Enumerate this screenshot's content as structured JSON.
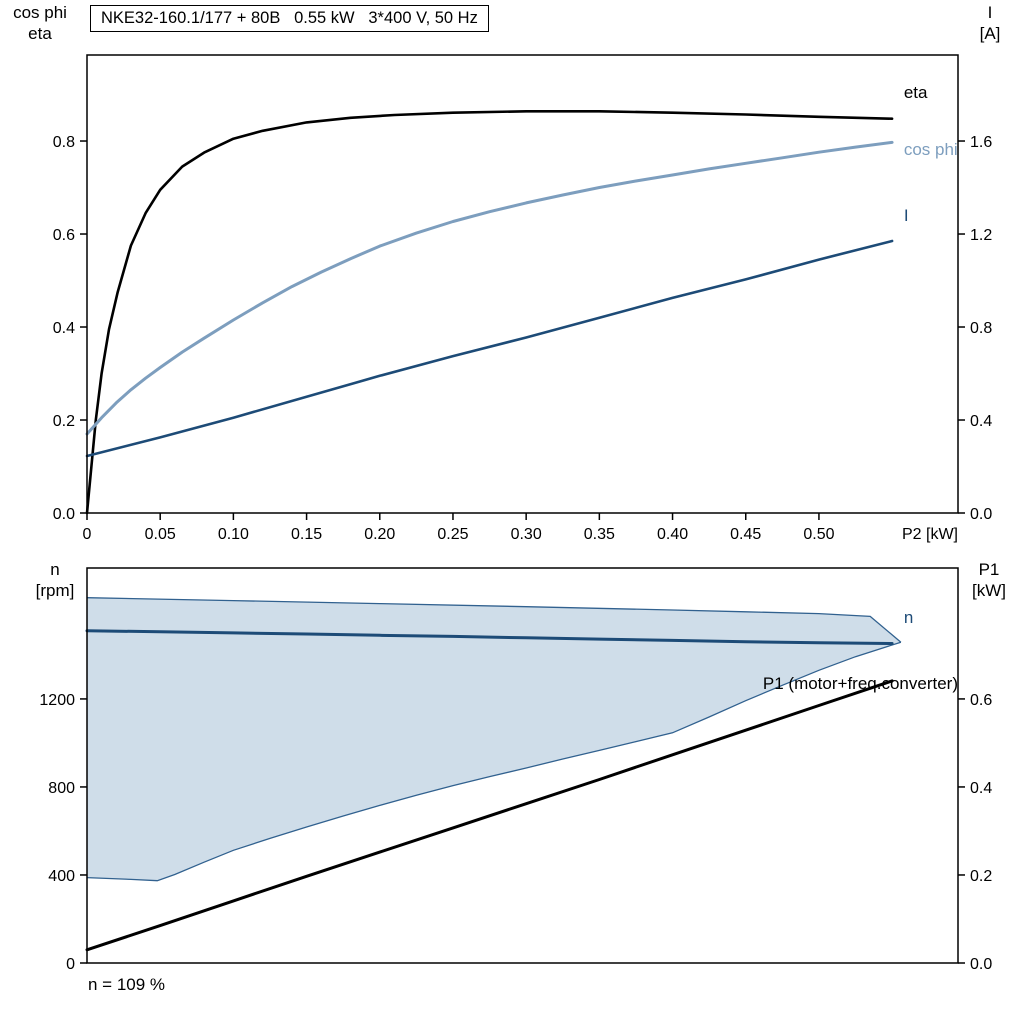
{
  "page": {
    "colors": {
      "black": "#000000",
      "light_blue": "#7d9ebe",
      "dark_blue": "#1d4b77",
      "area_fill": "#cfdde9",
      "area_edge": "#31618f"
    }
  },
  "chart_data": [
    {
      "id": "top",
      "type": "line",
      "title": "NKE32-160.1/177 + 80B   0.55 kW   3*400 V, 50 Hz",
      "xlabel": "P2 [kW]",
      "ylabel_left": [
        "cos phi",
        "eta"
      ],
      "ylabel_right": [
        "I",
        "[A]"
      ],
      "xlim": [
        0,
        0.595
      ],
      "ylim_left": [
        0,
        0.985
      ],
      "ylim_right": [
        0,
        1.97
      ],
      "grid": false,
      "legend_position": "inline-right",
      "xticks": [
        {
          "v": 0,
          "label": "0"
        },
        {
          "v": 0.05,
          "label": "0.05"
        },
        {
          "v": 0.1,
          "label": "0.10"
        },
        {
          "v": 0.15,
          "label": "0.15"
        },
        {
          "v": 0.2,
          "label": "0.20"
        },
        {
          "v": 0.25,
          "label": "0.25"
        },
        {
          "v": 0.3,
          "label": "0.30"
        },
        {
          "v": 0.35,
          "label": "0.35"
        },
        {
          "v": 0.4,
          "label": "0.40"
        },
        {
          "v": 0.45,
          "label": "0.45"
        },
        {
          "v": 0.5,
          "label": "0.50"
        }
      ],
      "yticks_left": [
        {
          "v": 0,
          "label": "0.0"
        },
        {
          "v": 0.2,
          "label": "0.2"
        },
        {
          "v": 0.4,
          "label": "0.4"
        },
        {
          "v": 0.6,
          "label": "0.6"
        },
        {
          "v": 0.8,
          "label": "0.8"
        }
      ],
      "yticks_right": [
        {
          "v": 0,
          "label": "0.0"
        },
        {
          "v": 0.4,
          "label": "0.4"
        },
        {
          "v": 0.8,
          "label": "0.8"
        },
        {
          "v": 1.2,
          "label": "1.2"
        },
        {
          "v": 1.6,
          "label": "1.6"
        }
      ],
      "series": [
        {
          "name": "eta",
          "axis": "left",
          "color": "black",
          "width": 2.6,
          "points": [
            [
              0,
              0
            ],
            [
              0.003,
              0.1
            ],
            [
              0.006,
              0.2
            ],
            [
              0.01,
              0.3
            ],
            [
              0.015,
              0.395
            ],
            [
              0.021,
              0.475
            ],
            [
              0.03,
              0.575
            ],
            [
              0.04,
              0.645
            ],
            [
              0.05,
              0.695
            ],
            [
              0.065,
              0.745
            ],
            [
              0.08,
              0.775
            ],
            [
              0.1,
              0.805
            ],
            [
              0.12,
              0.822
            ],
            [
              0.15,
              0.84
            ],
            [
              0.18,
              0.85
            ],
            [
              0.21,
              0.856
            ],
            [
              0.25,
              0.861
            ],
            [
              0.3,
              0.864
            ],
            [
              0.35,
              0.864
            ],
            [
              0.4,
              0.861
            ],
            [
              0.45,
              0.857
            ],
            [
              0.5,
              0.852
            ],
            [
              0.55,
              0.848
            ]
          ]
        },
        {
          "name": "cos phi",
          "axis": "left",
          "color": "light_blue",
          "width": 3,
          "points": [
            [
              0,
              0.17
            ],
            [
              0.01,
              0.205
            ],
            [
              0.02,
              0.237
            ],
            [
              0.03,
              0.265
            ],
            [
              0.04,
              0.29
            ],
            [
              0.05,
              0.313
            ],
            [
              0.065,
              0.346
            ],
            [
              0.08,
              0.376
            ],
            [
              0.1,
              0.415
            ],
            [
              0.12,
              0.452
            ],
            [
              0.14,
              0.487
            ],
            [
              0.16,
              0.518
            ],
            [
              0.18,
              0.547
            ],
            [
              0.2,
              0.574
            ],
            [
              0.225,
              0.602
            ],
            [
              0.25,
              0.627
            ],
            [
              0.275,
              0.648
            ],
            [
              0.3,
              0.667
            ],
            [
              0.325,
              0.684
            ],
            [
              0.35,
              0.7
            ],
            [
              0.375,
              0.714
            ],
            [
              0.4,
              0.727
            ],
            [
              0.425,
              0.74
            ],
            [
              0.45,
              0.752
            ],
            [
              0.475,
              0.764
            ],
            [
              0.5,
              0.776
            ],
            [
              0.525,
              0.787
            ],
            [
              0.55,
              0.797
            ]
          ]
        },
        {
          "name": "I",
          "axis": "right",
          "color": "dark_blue",
          "width": 2.6,
          "points": [
            [
              0,
              0.245
            ],
            [
              0.05,
              0.325
            ],
            [
              0.1,
              0.41
            ],
            [
              0.15,
              0.5
            ],
            [
              0.2,
              0.59
            ],
            [
              0.25,
              0.675
            ],
            [
              0.3,
              0.755
            ],
            [
              0.35,
              0.84
            ],
            [
              0.4,
              0.925
            ],
            [
              0.45,
              1.005
            ],
            [
              0.5,
              1.09
            ],
            [
              0.55,
              1.17
            ]
          ]
        }
      ],
      "annotations": [
        {
          "text": "eta",
          "x": 0.558,
          "y": 0.893,
          "axis": "left",
          "color": "black",
          "anchor": "start"
        },
        {
          "text": "cos phi",
          "x": 0.558,
          "y": 0.77,
          "axis": "left",
          "color": "light_blue",
          "anchor": "start"
        },
        {
          "text": "I",
          "x": 0.558,
          "y": 0.628,
          "axis": "left",
          "color": "dark_blue",
          "anchor": "start"
        }
      ]
    },
    {
      "id": "bottom",
      "type": "line",
      "title": "",
      "xlabel": "",
      "ylabel_left": [
        "n",
        "[rpm]"
      ],
      "ylabel_right": [
        "P1",
        "[kW]"
      ],
      "note": "n = 109 %",
      "xlim": [
        0,
        0.595
      ],
      "ylim_left": [
        0,
        1795
      ],
      "ylim_right": [
        0,
        0.8975
      ],
      "grid": false,
      "xticks": [],
      "yticks_left": [
        {
          "v": 0,
          "label": "0"
        },
        {
          "v": 400,
          "label": "400"
        },
        {
          "v": 800,
          "label": "800"
        },
        {
          "v": 1200,
          "label": "1200"
        }
      ],
      "yticks_right": [
        {
          "v": 0,
          "label": "0.0"
        },
        {
          "v": 0.2,
          "label": "0.2"
        },
        {
          "v": 0.4,
          "label": "0.4"
        },
        {
          "v": 0.6,
          "label": "0.6"
        }
      ],
      "area": {
        "axis": "left",
        "fill": "area_fill",
        "edge": "area_edge",
        "upper": [
          [
            0,
            1660
          ],
          [
            0.1,
            1647
          ],
          [
            0.2,
            1633
          ],
          [
            0.3,
            1619
          ],
          [
            0.4,
            1604
          ],
          [
            0.45,
            1596
          ],
          [
            0.5,
            1588
          ],
          [
            0.535,
            1575
          ],
          [
            0.556,
            1458
          ]
        ],
        "lower": [
          [
            0,
            388
          ],
          [
            0.03,
            380
          ],
          [
            0.048,
            374
          ],
          [
            0.06,
            402
          ],
          [
            0.08,
            458
          ],
          [
            0.1,
            512
          ],
          [
            0.125,
            566
          ],
          [
            0.15,
            618
          ],
          [
            0.175,
            668
          ],
          [
            0.2,
            716
          ],
          [
            0.225,
            762
          ],
          [
            0.25,
            806
          ],
          [
            0.275,
            847
          ],
          [
            0.3,
            886
          ],
          [
            0.325,
            927
          ],
          [
            0.35,
            966
          ],
          [
            0.375,
            1006
          ],
          [
            0.4,
            1046
          ],
          [
            0.425,
            1118
          ],
          [
            0.45,
            1192
          ],
          [
            0.475,
            1262
          ],
          [
            0.5,
            1330
          ],
          [
            0.525,
            1392
          ],
          [
            0.556,
            1458
          ]
        ]
      },
      "series": [
        {
          "name": "n",
          "axis": "left",
          "color": "dark_blue",
          "width": 3,
          "points": [
            [
              0,
              1510
            ],
            [
              0.05,
              1505
            ],
            [
              0.1,
              1500
            ],
            [
              0.15,
              1495
            ],
            [
              0.2,
              1489
            ],
            [
              0.25,
              1484
            ],
            [
              0.3,
              1478
            ],
            [
              0.35,
              1472
            ],
            [
              0.4,
              1466
            ],
            [
              0.45,
              1460
            ],
            [
              0.5,
              1455
            ],
            [
              0.55,
              1452
            ]
          ]
        },
        {
          "name": "P1",
          "axis": "right",
          "color": "black",
          "width": 3,
          "points": [
            [
              0,
              0.03
            ],
            [
              0.05,
              0.085
            ],
            [
              0.1,
              0.141
            ],
            [
              0.15,
              0.197
            ],
            [
              0.2,
              0.252
            ],
            [
              0.25,
              0.307
            ],
            [
              0.3,
              0.362
            ],
            [
              0.35,
              0.417
            ],
            [
              0.4,
              0.473
            ],
            [
              0.45,
              0.529
            ],
            [
              0.5,
              0.585
            ],
            [
              0.55,
              0.641
            ]
          ]
        }
      ],
      "annotations": [
        {
          "text": "n",
          "x": 0.558,
          "y": 1545,
          "axis": "left",
          "color": "dark_blue",
          "anchor": "start"
        },
        {
          "text": "P1 (motor+freq.converter)",
          "x": 0.595,
          "y": 1245,
          "axis": "left",
          "color": "black",
          "anchor": "end"
        }
      ]
    }
  ]
}
